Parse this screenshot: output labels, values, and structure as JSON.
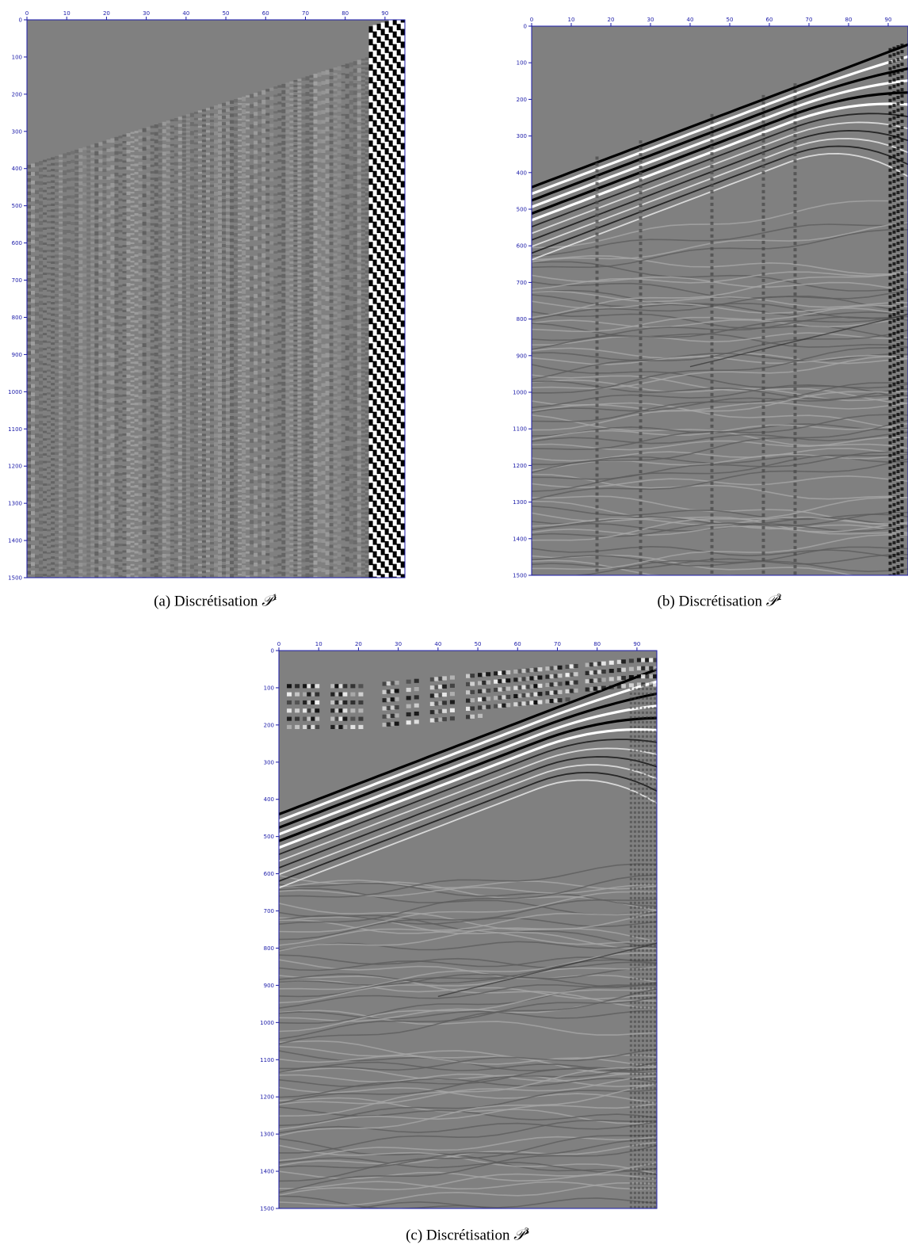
{
  "panels": [
    {
      "caption": {
        "label": "(a) Discrétisation",
        "symbol": "𝒫",
        "exponent": "1"
      },
      "xlim": [
        0,
        95
      ],
      "ylim": [
        0,
        1500
      ],
      "xticks": [
        0,
        10,
        20,
        30,
        40,
        50,
        60,
        70,
        80,
        90
      ],
      "yticks": [
        0,
        100,
        200,
        300,
        400,
        500,
        600,
        700,
        800,
        900,
        1000,
        1100,
        1200,
        1300,
        1400,
        1500
      ]
    },
    {
      "caption": {
        "label": "(b) Discrétisation",
        "symbol": "𝒫",
        "exponent": "2"
      },
      "xlim": [
        0,
        95
      ],
      "ylim": [
        0,
        1500
      ],
      "xticks": [
        0,
        10,
        20,
        30,
        40,
        50,
        60,
        70,
        80,
        90
      ],
      "yticks": [
        0,
        100,
        200,
        300,
        400,
        500,
        600,
        700,
        800,
        900,
        1000,
        1100,
        1200,
        1300,
        1400,
        1500
      ]
    },
    {
      "caption": {
        "label": "(c) Discrétisation",
        "symbol": "𝒫",
        "exponent": "3"
      },
      "xlim": [
        0,
        95
      ],
      "ylim": [
        0,
        1500
      ],
      "xticks": [
        0,
        10,
        20,
        30,
        40,
        50,
        60,
        70,
        80,
        90
      ],
      "yticks": [
        0,
        100,
        200,
        300,
        400,
        500,
        600,
        700,
        800,
        900,
        1000,
        1100,
        1200,
        1300,
        1400,
        1500
      ]
    }
  ]
}
